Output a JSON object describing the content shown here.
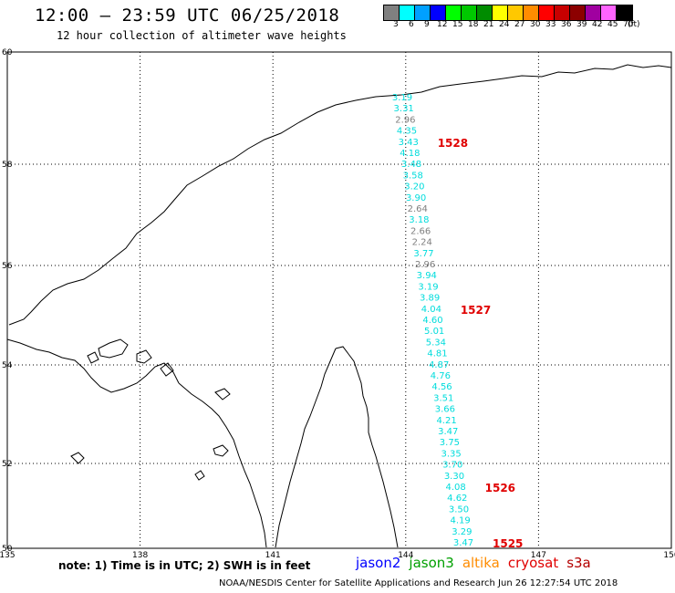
{
  "header": {
    "title": "12:00 – 23:59 UTC 06/25/2018",
    "subtitle": "12 hour collection of altimeter wave heights"
  },
  "legend": {
    "unit": "(ft)",
    "items": [
      {
        "label": "3",
        "color": "#808080"
      },
      {
        "label": "6",
        "color": "#00ffff"
      },
      {
        "label": "9",
        "color": "#00a0ff"
      },
      {
        "label": "12",
        "color": "#0000ff"
      },
      {
        "label": "15",
        "color": "#00ff00"
      },
      {
        "label": "18",
        "color": "#00c800"
      },
      {
        "label": "21",
        "color": "#008c00"
      },
      {
        "label": "24",
        "color": "#ffff00"
      },
      {
        "label": "27",
        "color": "#ffc800"
      },
      {
        "label": "30",
        "color": "#ff8c00"
      },
      {
        "label": "33",
        "color": "#ff0000"
      },
      {
        "label": "36",
        "color": "#c80000"
      },
      {
        "label": "39",
        "color": "#8c0000"
      },
      {
        "label": "42",
        "color": "#a000a0"
      },
      {
        "label": "45",
        "color": "#ff64ff"
      },
      {
        "label": "70",
        "color": "#000000"
      }
    ]
  },
  "map": {
    "lat_ticks": [
      "60",
      "58",
      "56",
      "54",
      "52",
      "50"
    ],
    "lon_ticks": [
      "135",
      "138",
      "141",
      "144",
      "147",
      "150"
    ],
    "passes": [
      {
        "label": "1528",
        "color": "#e00000"
      },
      {
        "label": "1527",
        "color": "#e00000"
      },
      {
        "label": "1526",
        "color": "#e00000"
      },
      {
        "label": "1525",
        "color": "#e00000"
      }
    ],
    "track": [
      {
        "v": "3.19",
        "c": "#00dcdc"
      },
      {
        "v": "3.31",
        "c": "#00dcdc"
      },
      {
        "v": "2.96",
        "c": "#808080"
      },
      {
        "v": "4.35",
        "c": "#00dcdc"
      },
      {
        "v": "3.43",
        "c": "#00dcdc"
      },
      {
        "v": "4.18",
        "c": "#00dcdc"
      },
      {
        "v": "3.48",
        "c": "#00dcdc"
      },
      {
        "v": "3.58",
        "c": "#00dcdc"
      },
      {
        "v": "3.20",
        "c": "#00dcdc"
      },
      {
        "v": "3.90",
        "c": "#00dcdc"
      },
      {
        "v": "2.64",
        "c": "#808080"
      },
      {
        "v": "3.18",
        "c": "#00dcdc"
      },
      {
        "v": "2.66",
        "c": "#808080"
      },
      {
        "v": "2.24",
        "c": "#808080"
      },
      {
        "v": "3.77",
        "c": "#00dcdc"
      },
      {
        "v": "2.96",
        "c": "#808080"
      },
      {
        "v": "3.94",
        "c": "#00dcdc"
      },
      {
        "v": "3.19",
        "c": "#00dcdc"
      },
      {
        "v": "3.89",
        "c": "#00dcdc"
      },
      {
        "v": "4.04",
        "c": "#00dcdc"
      },
      {
        "v": "4.60",
        "c": "#00dcdc"
      },
      {
        "v": "5.01",
        "c": "#00dcdc"
      },
      {
        "v": "5.34",
        "c": "#00dcdc"
      },
      {
        "v": "4.81",
        "c": "#00dcdc"
      },
      {
        "v": "4.87",
        "c": "#00dcdc"
      },
      {
        "v": "4.76",
        "c": "#00dcdc"
      },
      {
        "v": "4.56",
        "c": "#00dcdc"
      },
      {
        "v": "3.51",
        "c": "#00dcdc"
      },
      {
        "v": "3.66",
        "c": "#00dcdc"
      },
      {
        "v": "4.21",
        "c": "#00dcdc"
      },
      {
        "v": "3.47",
        "c": "#00dcdc"
      },
      {
        "v": "3.75",
        "c": "#00dcdc"
      },
      {
        "v": "3.35",
        "c": "#00dcdc"
      },
      {
        "v": "3.70",
        "c": "#00dcdc"
      },
      {
        "v": "3.30",
        "c": "#00dcdc"
      },
      {
        "v": "4.08",
        "c": "#00dcdc"
      },
      {
        "v": "4.62",
        "c": "#00dcdc"
      },
      {
        "v": "3.50",
        "c": "#00dcdc"
      },
      {
        "v": "4.19",
        "c": "#00dcdc"
      },
      {
        "v": "3.29",
        "c": "#00dcdc"
      },
      {
        "v": "3.47",
        "c": "#00dcdc"
      }
    ]
  },
  "footer": {
    "note": "note:  1) Time is in UTC;  2) SWH is in feet",
    "satellites": [
      {
        "name": "jason2",
        "color": "#0000ff"
      },
      {
        "name": "jason3",
        "color": "#00a000"
      },
      {
        "name": "altika",
        "color": "#ff8c00"
      },
      {
        "name": "cryosat",
        "color": "#e00000"
      },
      {
        "name": "s3a",
        "color": "#b40000"
      }
    ],
    "credit": "NOAA/NESDIS Center for Satellite Applications and Research    Jun 26 12:27:54 UTC 2018"
  }
}
